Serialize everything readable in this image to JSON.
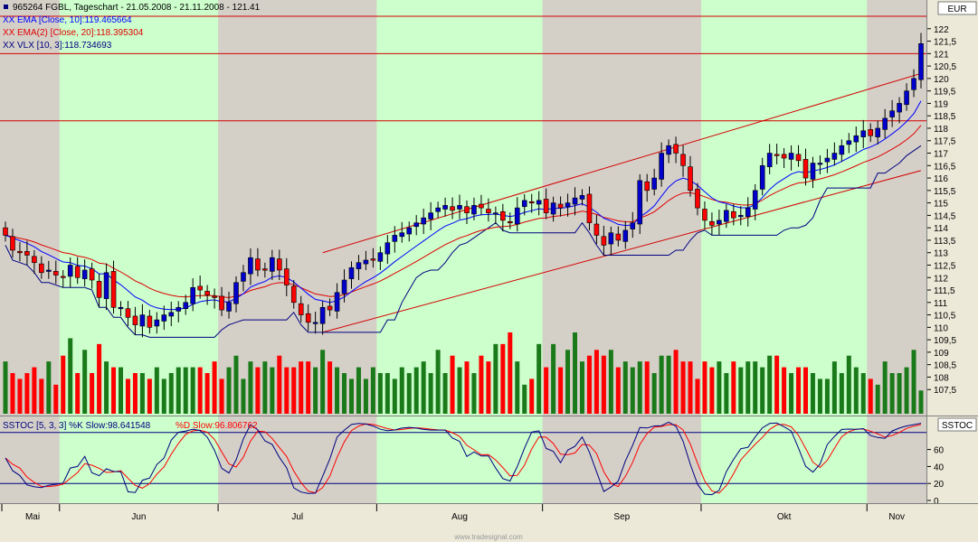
{
  "header": {
    "instrument": "965264",
    "symbol": "FGBL",
    "title": "965264  FGBL, Tageschart - 21.05.2008 - 21.11.2008 - 121.41",
    "currency": "EUR"
  },
  "legend": [
    {
      "text": "EMA [Close, 10]:119.465664",
      "color": "#0000ff"
    },
    {
      "text": "EMA(2) [Close, 20]:118.395304",
      "color": "#e00000"
    },
    {
      "text": "VLX [10, 3]:118.734693",
      "color": "#000080"
    }
  ],
  "oscillator": {
    "title": "SSTOC",
    "legend_k": "SSTOC [5, 3, 3] %K Slow:98.641548",
    "legend_d": "%D Slow:96.806762",
    "ticks": [
      "60",
      "40",
      "20",
      "0"
    ]
  },
  "watermark": "www.tradesignal.com",
  "chart_data": [
    {
      "type": "candlestick",
      "title": "965264  FGBL, Tageschart - 21.05.2008 - 21.11.2008 - 121.41",
      "ylabel": "EUR",
      "ylim": [
        107,
        122.5
      ],
      "yticks": [
        "122",
        "121,5",
        "121",
        "120,5",
        "120",
        "119,5",
        "119",
        "118,5",
        "118",
        "117,5",
        "117",
        "116,5",
        "116",
        "115,5",
        "115",
        "114,5",
        "114",
        "113,5",
        "113",
        "112,5",
        "112",
        "111,5",
        "111",
        "110,5",
        "110",
        "109,5",
        "109",
        "108,5",
        "108",
        "107,5"
      ],
      "xticks": [
        "Mai",
        "Jun",
        "Jul",
        "Aug",
        "Sep",
        "Okt",
        "Nov"
      ],
      "grid": false,
      "bars": 128,
      "month_start_bar": [
        0,
        8,
        30,
        52,
        75,
        97,
        120
      ],
      "shaded_months": [
        "Jun",
        "Aug",
        "Okt"
      ],
      "close": [
        113.7,
        113.1,
        113.0,
        112.9,
        112.6,
        112.2,
        112.3,
        112.1,
        112.0,
        112.5,
        112.0,
        112.3,
        111.9,
        111.2,
        112.2,
        110.8,
        110.8,
        110.4,
        110.1,
        110.5,
        110.0,
        110.3,
        110.5,
        110.6,
        110.8,
        111.0,
        111.6,
        111.5,
        111.3,
        111.2,
        110.7,
        111.0,
        111.8,
        112.2,
        112.8,
        112.3,
        112.3,
        112.8,
        112.3,
        111.7,
        111.0,
        110.5,
        110.2,
        110.2,
        110.8,
        110.7,
        111.4,
        111.9,
        112.4,
        112.6,
        112.7,
        112.7,
        113.0,
        113.4,
        113.7,
        113.8,
        114.0,
        114.2,
        114.4,
        114.6,
        114.8,
        114.9,
        114.7,
        114.9,
        114.6,
        114.9,
        114.8,
        114.6,
        114.6,
        114.3,
        114.2,
        114.8,
        115.1,
        115.0,
        115.1,
        114.6,
        115.0,
        114.8,
        115.0,
        115.2,
        115.3,
        114.2,
        113.7,
        113.3,
        113.8,
        113.5,
        113.9,
        114.2,
        115.9,
        115.5,
        116.0,
        117.0,
        117.3,
        117.0,
        116.5,
        115.5,
        114.8,
        114.3,
        114.1,
        114.3,
        114.7,
        114.4,
        114.5,
        114.8,
        115.5,
        116.5,
        117.0,
        116.9,
        116.8,
        117.0,
        116.7,
        116.0,
        116.6,
        116.6,
        116.8,
        117.0,
        117.3,
        117.5,
        117.7,
        117.9,
        117.7,
        118.0,
        118.4,
        118.7,
        119.0,
        119.5,
        120.0,
        121.4
      ],
      "overlays": [
        {
          "name": "EMA [Close, 10]",
          "color": "#0000ff"
        },
        {
          "name": "EMA(2) [Close, 20]",
          "color": "#e00000"
        },
        {
          "name": "VLX [10, 3]",
          "color": "#000080"
        }
      ],
      "horizontal_lines": [
        122.5,
        121.0,
        118.3
      ],
      "trend_channel": [
        {
          "from_bar": 44,
          "from": 113.0,
          "to_bar": 127,
          "to": 120.2
        },
        {
          "from_bar": 44,
          "from": 109.8,
          "to_bar": 127,
          "to": 116.3
        }
      ]
    },
    {
      "type": "bar",
      "title": "Volume",
      "series": [
        {
          "name": "",
          "values": [
            9,
            7,
            6,
            7,
            8,
            6,
            9,
            5,
            10,
            13,
            7,
            11,
            7,
            12,
            9,
            8,
            8,
            6,
            7,
            7,
            6,
            8,
            6,
            7,
            8,
            8,
            8,
            8,
            7,
            9,
            6,
            8,
            10,
            6,
            9,
            8,
            9,
            8,
            10,
            8,
            8,
            9,
            9,
            8,
            11,
            9,
            8,
            7,
            6,
            8,
            6,
            8,
            7,
            7,
            6,
            8,
            7,
            8,
            9,
            7,
            11,
            7,
            10,
            8,
            9,
            7,
            10,
            9,
            12,
            12,
            14,
            9,
            5,
            6,
            12,
            8,
            12,
            8,
            11,
            14,
            9,
            10,
            11,
            10,
            11,
            8,
            9,
            8,
            9,
            9,
            7,
            10,
            10,
            11,
            9,
            9,
            6,
            9,
            8,
            9,
            7,
            9,
            8,
            9,
            9,
            8,
            10,
            10,
            8,
            7,
            8,
            8,
            7,
            6,
            6,
            9,
            7,
            10,
            8,
            7,
            6,
            5,
            9,
            7,
            7,
            8,
            11,
            4
          ]
        }
      ],
      "up_color": "#1a7a1a",
      "down_color": "#ff0000"
    },
    {
      "type": "line",
      "title": "SSTOC [5, 3, 3]",
      "ylim": [
        0,
        100
      ],
      "yticks": [
        "60",
        "40",
        "20",
        "0"
      ],
      "series": [
        {
          "name": "%K Slow",
          "color": "#00007f"
        },
        {
          "name": "%D Slow",
          "color": "#ff0000"
        }
      ],
      "horizontal_lines": [
        80,
        20
      ]
    }
  ]
}
